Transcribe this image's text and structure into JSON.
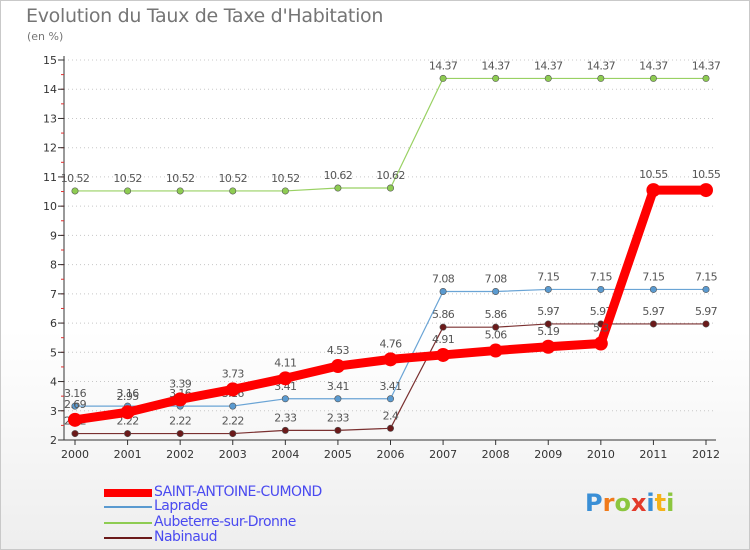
{
  "header": {
    "title": "Evolution du Taux de Taxe d'Habitation",
    "subtitle": "(en %)"
  },
  "brand": {
    "letters": [
      "P",
      "r",
      "o",
      "x",
      "i",
      "t",
      "i"
    ]
  },
  "chart_data": {
    "type": "line",
    "title": "Evolution du Taux de Taxe d'Habitation",
    "ylabel": "(en %)",
    "xlabel": "",
    "ylim": [
      2,
      15
    ],
    "categories": [
      "2000",
      "2001",
      "2002",
      "2003",
      "2004",
      "2005",
      "2006",
      "2007",
      "2008",
      "2009",
      "2010",
      "2011",
      "2012"
    ],
    "yticks": [
      "2",
      "3",
      "4",
      "5",
      "6",
      "7",
      "8",
      "9",
      "10",
      "11",
      "12",
      "13",
      "14",
      "15"
    ],
    "legend_position": "bottom-left",
    "series": [
      {
        "name": "Nabinaud",
        "color": "#6b1a1a",
        "values": [
          2.22,
          2.22,
          2.22,
          2.22,
          2.33,
          2.33,
          2.4,
          5.86,
          5.86,
          5.97,
          5.97,
          5.97,
          5.97
        ],
        "labels": [
          "2.22",
          "2.22",
          "2.22",
          "2.22",
          "2.33",
          "2.33",
          "2.4",
          "5.86",
          "5.86",
          "5.97",
          "5.97",
          "5.97",
          "5.97"
        ]
      },
      {
        "name": "Aubeterre-sur-Dronne",
        "color": "#8ecc52",
        "values": [
          10.52,
          10.52,
          10.52,
          10.52,
          10.52,
          10.62,
          10.62,
          14.37,
          14.37,
          14.37,
          14.37,
          14.37,
          14.37
        ],
        "labels": [
          "10.52",
          "10.52",
          "10.52",
          "10.52",
          "10.52",
          "10.62",
          "10.62",
          "14.37",
          "14.37",
          "14.37",
          "14.37",
          "14.37",
          "14.37"
        ]
      },
      {
        "name": "Laprade",
        "color": "#5a9ad0",
        "values": [
          3.16,
          3.16,
          3.16,
          3.16,
          3.41,
          3.41,
          3.41,
          7.08,
          7.08,
          7.15,
          7.15,
          7.15,
          7.15
        ],
        "labels": [
          "3.16",
          "3.16",
          "3.16",
          "3.16",
          "3.41",
          "3.41",
          "3.41",
          "7.08",
          "7.08",
          "7.15",
          "7.15",
          "7.15",
          "7.15"
        ]
      },
      {
        "name": "SAINT-ANTOINE-CUMOND",
        "color": "#ff0000",
        "values": [
          2.69,
          2.95,
          3.39,
          3.73,
          4.11,
          4.53,
          4.76,
          4.91,
          5.06,
          5.19,
          5.3,
          10.55,
          10.55
        ],
        "labels": [
          "2.69",
          "2.95",
          "3.39",
          "3.73",
          "4.11",
          "4.53",
          "4.76",
          "4.91",
          "5.06",
          "5.19",
          "5.3",
          "10.55",
          "10.55"
        ]
      }
    ],
    "legend": [
      {
        "name": "SAINT-ANTOINE-CUMOND",
        "color": "#ff0000",
        "text_color": "#4a4af0"
      },
      {
        "name": "Laprade",
        "color": "#5a9ad0",
        "text_color": "#4a4af0"
      },
      {
        "name": "Aubeterre-sur-Dronne",
        "color": "#8ecc52",
        "text_color": "#4a4af0"
      },
      {
        "name": "Nabinaud",
        "color": "#6b1a1a",
        "text_color": "#4a4af0"
      }
    ]
  }
}
